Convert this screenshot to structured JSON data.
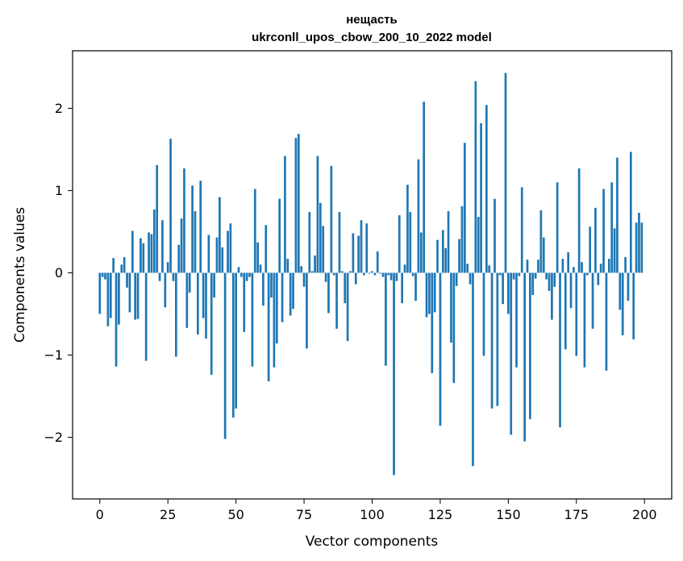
{
  "chart_data": {
    "type": "bar",
    "title": "нещасть",
    "subtitle": "ukrconll_upos_cbow_200_10_2022 model",
    "xlabel": "Vector components",
    "ylabel": "Components values",
    "xlim": [
      -10,
      210
    ],
    "ylim": [
      -2.75,
      2.7
    ],
    "xticks": [
      0,
      25,
      50,
      75,
      100,
      125,
      150,
      175,
      200
    ],
    "yticks": [
      -2,
      -1,
      0,
      1,
      2
    ],
    "bar_color": "#1f77b4",
    "grid": false,
    "x": [
      0,
      1,
      2,
      3,
      4,
      5,
      6,
      7,
      8,
      9,
      10,
      11,
      12,
      13,
      14,
      15,
      16,
      17,
      18,
      19,
      20,
      21,
      22,
      23,
      24,
      25,
      26,
      27,
      28,
      29,
      30,
      31,
      32,
      33,
      34,
      35,
      36,
      37,
      38,
      39,
      40,
      41,
      42,
      43,
      44,
      45,
      46,
      47,
      48,
      49,
      50,
      51,
      52,
      53,
      54,
      55,
      56,
      57,
      58,
      59,
      60,
      61,
      62,
      63,
      64,
      65,
      66,
      67,
      68,
      69,
      70,
      71,
      72,
      73,
      74,
      75,
      76,
      77,
      78,
      79,
      80,
      81,
      82,
      83,
      84,
      85,
      86,
      87,
      88,
      89,
      90,
      91,
      92,
      93,
      94,
      95,
      96,
      97,
      98,
      99,
      100,
      101,
      102,
      103,
      104,
      105,
      106,
      107,
      108,
      109,
      110,
      111,
      112,
      113,
      114,
      115,
      116,
      117,
      118,
      119,
      120,
      121,
      122,
      123,
      124,
      125,
      126,
      127,
      128,
      129,
      130,
      131,
      132,
      133,
      134,
      135,
      136,
      137,
      138,
      139,
      140,
      141,
      142,
      143,
      144,
      145,
      146,
      147,
      148,
      149,
      150,
      151,
      152,
      153,
      154,
      155,
      156,
      157,
      158,
      159,
      160,
      161,
      162,
      163,
      164,
      165,
      166,
      167,
      168,
      169,
      170,
      171,
      172,
      173,
      174,
      175,
      176,
      177,
      178,
      179,
      180,
      181,
      182,
      183,
      184,
      185,
      186,
      187,
      188,
      189,
      190,
      191,
      192,
      193,
      194,
      195,
      196,
      197,
      198,
      199
    ],
    "values": [
      -0.5,
      -0.05,
      -0.08,
      -0.65,
      -0.55,
      0.18,
      -1.14,
      -0.63,
      0.1,
      0.19,
      -0.18,
      -0.48,
      0.51,
      -0.57,
      -0.56,
      0.42,
      0.36,
      -1.07,
      0.49,
      0.47,
      0.77,
      1.31,
      -0.1,
      0.64,
      -0.42,
      0.13,
      1.63,
      -0.1,
      -1.02,
      0.34,
      0.66,
      1.27,
      -0.67,
      -0.24,
      1.06,
      0.75,
      -0.75,
      1.12,
      -0.55,
      -0.8,
      0.46,
      -1.24,
      -0.3,
      0.43,
      0.92,
      0.31,
      -2.02,
      0.51,
      0.6,
      -1.76,
      -1.65,
      0.07,
      -0.05,
      -0.72,
      -0.1,
      -0.05,
      -1.14,
      1.02,
      0.37,
      0.1,
      -0.4,
      0.58,
      -1.32,
      -0.3,
      -1.15,
      -0.86,
      0.9,
      -0.6,
      1.42,
      0.17,
      -0.52,
      -0.44,
      1.64,
      1.69,
      0.08,
      -0.17,
      -0.92,
      0.74,
      0.02,
      0.21,
      1.42,
      0.85,
      0.57,
      -0.11,
      -0.49,
      1.3,
      -0.03,
      -0.68,
      0.74,
      0.02,
      -0.37,
      -0.83,
      0.02,
      0.48,
      -0.14,
      0.45,
      0.64,
      -0.03,
      0.6,
      -0.01,
      0.02,
      -0.03,
      0.26,
      -0.01,
      -0.05,
      -1.13,
      -0.03,
      -0.09,
      -2.46,
      -0.1,
      0.7,
      -0.37,
      0.1,
      1.07,
      0.74,
      -0.04,
      -0.34,
      1.38,
      0.49,
      2.08,
      -0.54,
      -0.5,
      -1.22,
      -0.48,
      0.4,
      -1.86,
      0.52,
      0.3,
      0.75,
      -0.85,
      -1.34,
      -0.16,
      0.41,
      0.81,
      1.58,
      0.11,
      -0.14,
      -2.35,
      2.33,
      0.68,
      1.82,
      -1.01,
      2.04,
      0.09,
      -1.65,
      0.9,
      -1.62,
      -0.03,
      -0.38,
      2.43,
      -0.5,
      -1.97,
      -0.08,
      -1.15,
      -0.04,
      1.04,
      -2.05,
      0.16,
      -1.78,
      -0.27,
      -0.07,
      0.16,
      0.76,
      0.43,
      -0.08,
      -0.22,
      -0.57,
      -0.17,
      1.1,
      -1.88,
      0.17,
      -0.93,
      0.25,
      -0.43,
      0.07,
      -1.01,
      1.27,
      0.13,
      -1.15,
      -0.03,
      0.56,
      -0.68,
      0.79,
      -0.15,
      0.11,
      1.02,
      -1.19,
      0.17,
      1.1,
      0.54,
      1.4,
      -0.45,
      -0.76,
      0.19,
      -0.34,
      1.47,
      -0.81,
      0.61,
      0.73,
      0.61
    ]
  }
}
